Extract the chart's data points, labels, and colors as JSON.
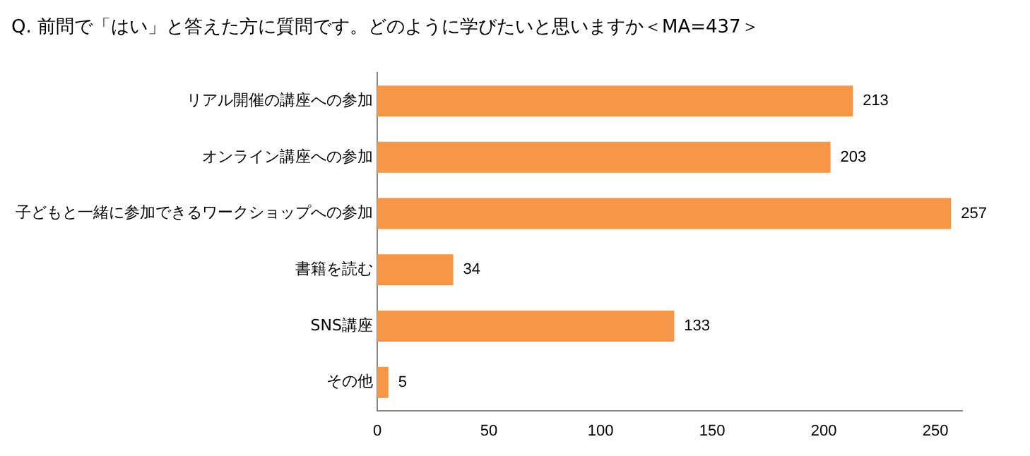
{
  "chart_data": {
    "type": "bar",
    "orientation": "horizontal",
    "title": "Q. 前問で「はい」と答えた方に質問です。どのように学びたいと思いますか＜MA=437＞",
    "categories": [
      "リアル開催の講座への参加",
      "オンライン講座への参加",
      "子どもと一緒に参加できるワークショップへの参加",
      "書籍を読む",
      "SNS講座",
      "その他"
    ],
    "values": [
      213,
      203,
      257,
      34,
      133,
      5
    ],
    "color": "#f79646",
    "xlim": [
      0,
      262
    ],
    "xticks": [
      0,
      50,
      100,
      150,
      200,
      250
    ],
    "grid": false,
    "legend": false,
    "data_labels": true
  }
}
